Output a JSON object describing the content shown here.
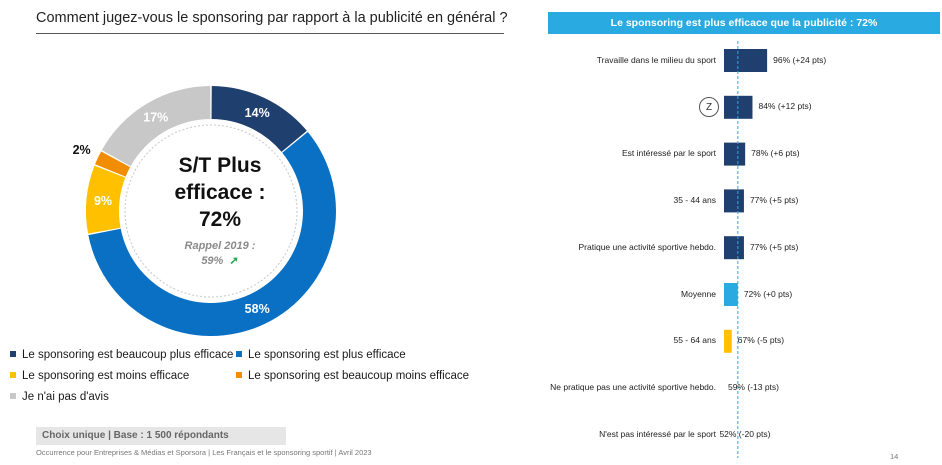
{
  "left": {
    "title": "Comment jugez-vous le sponsoring par rapport à la publicité en général ?",
    "center": {
      "line1": "S/T Plus",
      "line2": "efficace :",
      "line3": "72%",
      "recall_line1": "Rappel 2019 :",
      "recall_line2": "59%",
      "arrow": "➚"
    },
    "legend": [
      {
        "label": "Le sponsoring est beaucoup plus efficace",
        "color": "#1f3f6e"
      },
      {
        "label": "Le sponsoring est plus efficace",
        "color": "#0a70c4"
      },
      {
        "label": "Le sponsoring est moins efficace",
        "color": "#ffc000"
      },
      {
        "label": "Le sponsoring est beaucoup moins efficace",
        "color": "#f28c00"
      },
      {
        "label": "Je n'ai pas d'avis",
        "color": "#c8c8c8"
      }
    ],
    "base": "Choix unique | Base : 1 500 répondants",
    "source": "Occurrence pour Entreprises & Médias et Sporsora | Les Français et le sponsoring sportif | Avril 2023"
  },
  "right": {
    "title_prefix": "Le sponsoring est plus efficace que la publicité : ",
    "title_value": "72%",
    "badge": "Z",
    "page_number": "14"
  },
  "chart_data": [
    {
      "type": "pie",
      "variant": "donut",
      "slices": [
        {
          "name": "Le sponsoring est beaucoup plus efficace",
          "value": 14,
          "label": "14%",
          "color": "#1f3f6e"
        },
        {
          "name": "Le sponsoring est plus efficace",
          "value": 58,
          "label": "58%",
          "color": "#0a70c4"
        },
        {
          "name": "Le sponsoring est moins efficace",
          "value": 9,
          "label": "9%",
          "color": "#ffc000"
        },
        {
          "name": "Le sponsoring est beaucoup moins efficace",
          "value": 2,
          "label": "2%",
          "color": "#f28c00"
        },
        {
          "name": "Je n'ai pas d'avis",
          "value": 17,
          "label": "17%",
          "color": "#c8c8c8"
        }
      ]
    },
    {
      "type": "bar",
      "orientation": "horizontal",
      "xlim": [
        0,
        100
      ],
      "reference_line": 72,
      "categories": [
        "Travaille dans le milieu du sport",
        "",
        "Est intéressé par le sport",
        "35 - 44 ans",
        "Pratique une activité sportive hebdo.",
        "Moyenne",
        "55 - 64 ans",
        "Ne pratique pas une activité sportive hebdo.",
        "N'est pas intéressé par le sport"
      ],
      "values": [
        96,
        84,
        78,
        77,
        77,
        72,
        67,
        59,
        52
      ],
      "value_labels": [
        "96% (+24 pts)",
        "84% (+12 pts)",
        "78% (+6 pts)",
        "77% (+5 pts)",
        "77% (+5 pts)",
        "72% (+0 pts)",
        "67% (-5 pts)",
        "59% (-13 pts)",
        "52% (-20 pts)"
      ],
      "colors": [
        "#1f3f6e",
        "#1f3f6e",
        "#1f3f6e",
        "#1f3f6e",
        "#1f3f6e",
        "#29abe2",
        "#ffc000",
        "#ffc000",
        "#ffc000"
      ]
    }
  ]
}
